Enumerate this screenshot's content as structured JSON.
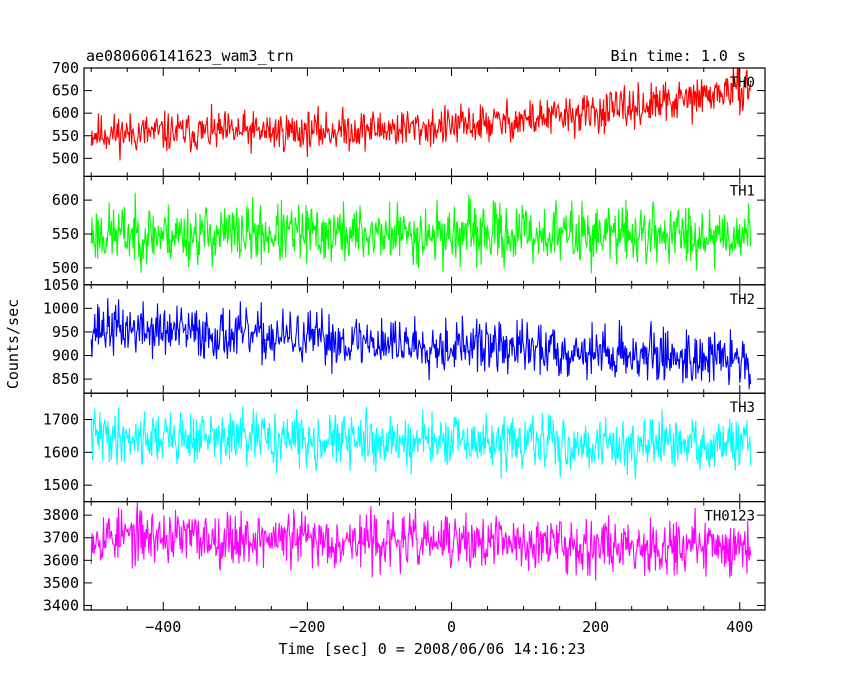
{
  "title": "ae080606141623_wam3_trn",
  "bin_time": "Bin time: 1.0 s",
  "chart_data": {
    "type": "line",
    "xlabel": "Time [sec] 0 = 2008/06/06 14:16:23",
    "ylabel": "Counts/sec",
    "xlim": [
      -510,
      435
    ],
    "x_ticks": [
      -400,
      -200,
      0,
      200,
      400
    ],
    "x_tick_labels": [
      "−400",
      "−200",
      "0",
      "200",
      "400"
    ],
    "x_start": -500,
    "x_end": 415,
    "grid": false,
    "panels": [
      {
        "name": "TH0",
        "color": "#ff0000",
        "ylim": [
          460,
          700
        ],
        "yticks": [
          500,
          550,
          600,
          650,
          700
        ],
        "trend": [
          [
            -500,
            555
          ],
          [
            -200,
            560
          ],
          [
            0,
            570
          ],
          [
            200,
            600
          ],
          [
            330,
            630
          ],
          [
            415,
            660
          ]
        ],
        "noise": 22,
        "seed": 11
      },
      {
        "name": "TH1",
        "color": "#00ff00",
        "ylim": [
          475,
          635
        ],
        "yticks": [
          500,
          550,
          600
        ],
        "trend": [
          [
            -500,
            550
          ],
          [
            415,
            550
          ]
        ],
        "noise": 22,
        "seed": 23
      },
      {
        "name": "TH2",
        "color": "#0000ff",
        "ylim": [
          820,
          1050
        ],
        "yticks": [
          850,
          900,
          950,
          1000,
          1050
        ],
        "trend": [
          [
            -500,
            960
          ],
          [
            -200,
            935
          ],
          [
            100,
            915
          ],
          [
            415,
            890
          ]
        ],
        "noise": 28,
        "seed": 37
      },
      {
        "name": "TH3",
        "color": "#00ffff",
        "ylim": [
          1450,
          1780
        ],
        "yticks": [
          1500,
          1600,
          1700
        ],
        "trend": [
          [
            -500,
            1650
          ],
          [
            0,
            1630
          ],
          [
            415,
            1620
          ]
        ],
        "noise": 40,
        "seed": 41
      },
      {
        "name": "TH0123",
        "color": "#ff00ff",
        "ylim": [
          3380,
          3860
        ],
        "yticks": [
          3400,
          3500,
          3600,
          3700,
          3800
        ],
        "trend": [
          [
            -500,
            3710
          ],
          [
            0,
            3680
          ],
          [
            415,
            3660
          ]
        ],
        "noise": 60,
        "seed": 53
      }
    ]
  }
}
